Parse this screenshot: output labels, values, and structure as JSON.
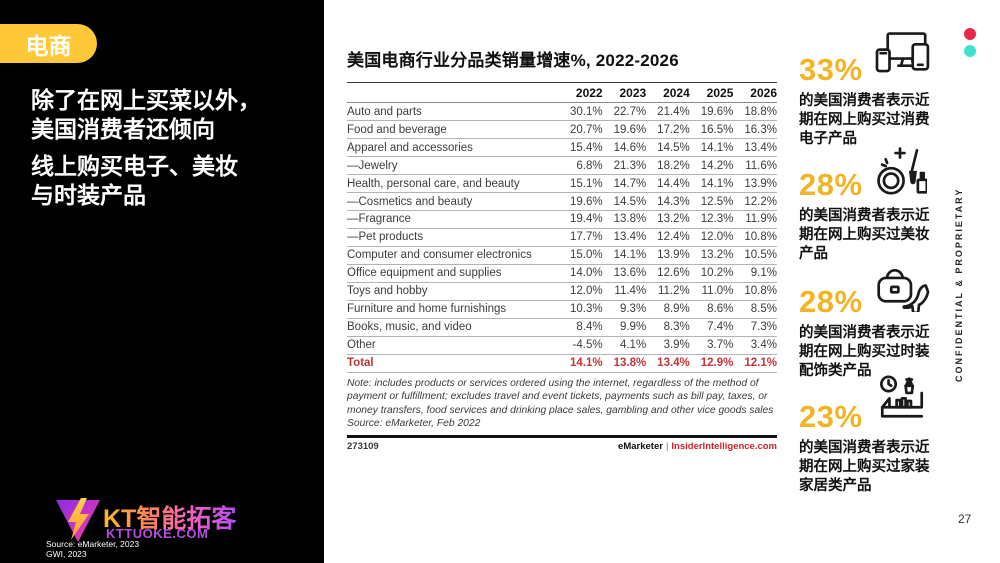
{
  "sidebar": {
    "badge": "电商",
    "headline_lines": [
      "除了在网上买菜以外，",
      "美国消费者还倾向",
      "线上购买电子、美妆",
      "与时装产品"
    ],
    "logo": {
      "brand": "KT智能拓客",
      "domain": "KTTUOKE.COM",
      "source_line1": "Source: eMarketer, 2023",
      "source_line2": "GWI, 2023"
    }
  },
  "chart_data": {
    "type": "table",
    "title": "美国电商行业分品类销量增速%, 2022-2026",
    "columns": [
      "2022",
      "2023",
      "2024",
      "2025",
      "2026"
    ],
    "rows": [
      {
        "label": "Auto and parts",
        "values": [
          "30.1%",
          "22.7%",
          "21.4%",
          "19.6%",
          "18.8%"
        ]
      },
      {
        "label": "Food and beverage",
        "values": [
          "20.7%",
          "19.6%",
          "17.2%",
          "16.5%",
          "16.3%"
        ]
      },
      {
        "label": "Apparel and accessories",
        "values": [
          "15.4%",
          "14.6%",
          "14.5%",
          "14.1%",
          "13.4%"
        ]
      },
      {
        "label": "—Jewelry",
        "values": [
          "6.8%",
          "21.3%",
          "18.2%",
          "14.2%",
          "11.6%"
        ]
      },
      {
        "label": "Health, personal care, and beauty",
        "values": [
          "15.1%",
          "14.7%",
          "14.4%",
          "14.1%",
          "13.9%"
        ]
      },
      {
        "label": "—Cosmetics and beauty",
        "values": [
          "19.6%",
          "14.5%",
          "14.3%",
          "12.5%",
          "12.2%"
        ]
      },
      {
        "label": "—Fragrance",
        "values": [
          "19.4%",
          "13.8%",
          "13.2%",
          "12.3%",
          "11.9%"
        ]
      },
      {
        "label": "—Pet products",
        "values": [
          "17.7%",
          "13.4%",
          "12.4%",
          "12.0%",
          "10.8%"
        ]
      },
      {
        "label": "Computer and consumer electronics",
        "values": [
          "15.0%",
          "14.1%",
          "13.9%",
          "13.2%",
          "10.5%"
        ]
      },
      {
        "label": "Office equipment and supplies",
        "values": [
          "14.0%",
          "13.6%",
          "12.6%",
          "10.2%",
          "9.1%"
        ]
      },
      {
        "label": "Toys and hobby",
        "values": [
          "12.0%",
          "11.4%",
          "11.2%",
          "11.0%",
          "10.8%"
        ]
      },
      {
        "label": "Furniture and home furnishings",
        "values": [
          "10.3%",
          "9.3%",
          "8.9%",
          "8.6%",
          "8.5%"
        ]
      },
      {
        "label": "Books, music, and video",
        "values": [
          "8.4%",
          "9.9%",
          "8.3%",
          "7.4%",
          "7.3%"
        ]
      },
      {
        "label": "Other",
        "values": [
          "-4.5%",
          "4.1%",
          "3.9%",
          "3.7%",
          "3.4%"
        ]
      }
    ],
    "total": {
      "label": "Total",
      "values": [
        "14.1%",
        "13.8%",
        "13.4%",
        "12.9%",
        "12.1%"
      ]
    },
    "note": "Note: includes products or services ordered using the internet, regardless of the method of payment or fulfillment; excludes travel and event tickets, payments such as bill pay, taxes, or money transfers, food services and drinking place sales, gambling and other vice goods sales",
    "note_source": "Source: eMarketer, Feb 2022",
    "footer_id": "273109",
    "footer_brand_left": "eMarketer",
    "footer_brand_sep": "|",
    "footer_brand_right": "InsiderIntelligence.com"
  },
  "stats": {
    "items": [
      {
        "pct": "33%",
        "icon": "devices-icon",
        "lines": [
          "的美国消费者表示近",
          "期在网上购买过消费",
          "电子产品"
        ]
      },
      {
        "pct": "28%",
        "icon": "makeup-icon",
        "lines": [
          "的美国消费者表示近",
          "期在网上购买过美妆",
          "产品"
        ]
      },
      {
        "pct": "28%",
        "icon": "fashion-accessories-icon",
        "lines": [
          "的美国消费者表示近",
          "期在网上购买过时装",
          "配饰类产品"
        ]
      },
      {
        "pct": "23%",
        "icon": "home-furnishings-icon",
        "lines": [
          "的美国消费者表示近",
          "期在网上购买过家装",
          "家居类产品"
        ]
      }
    ]
  },
  "page": {
    "confidential": "CONFIDENTIAL & PROPRIETARY",
    "page_number": "27"
  },
  "colors": {
    "accent_yellow": "#FFC838",
    "stat_yellow": "#F2B425",
    "total_red": "#C4353B",
    "insider_red": "#D2232A",
    "dot_red": "#E8274B",
    "dot_teal": "#3FE3CD",
    "sidebar_black": "#000000"
  }
}
